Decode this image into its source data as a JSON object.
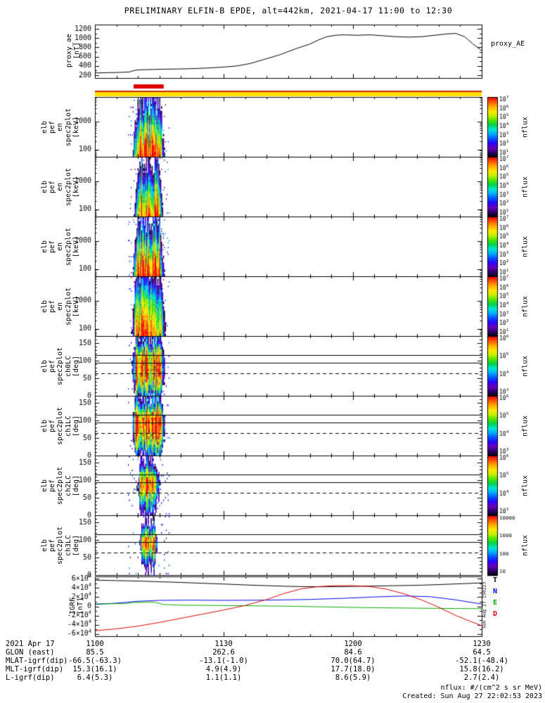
{
  "title": "PRELIMINARY ELFIN-B EPDE, alt=442km, 2021-04-17 11:00 to 12:30",
  "stamp_vertical": "Sun Aug 27 150223",
  "labels": {
    "nflux": "nflux"
  },
  "colors": {
    "background": "#ffffff",
    "frame": "#000000",
    "burst_marker": "#dd0000",
    "status_bar": "#ffdf00",
    "status_bar_edge": "#cc2200"
  },
  "colormap": [
    "#05000a",
    "#2b006a",
    "#6a00b8",
    "#2a00ff",
    "#0055ff",
    "#00aaff",
    "#00e6d2",
    "#00d24b",
    "#53e600",
    "#c8f000",
    "#ffe600",
    "#ffaa00",
    "#ff5500",
    "#f00000"
  ],
  "chart_data": {
    "type": "multi-panel time series and spectrograms",
    "time_axis": {
      "t_start": 0,
      "t_end": 90,
      "minor_step": 5,
      "major_ticks": [
        0,
        30,
        60,
        90
      ],
      "tick_labels": [
        "1100",
        "1130",
        "1200",
        "1230"
      ]
    },
    "proxy": {
      "left_label": "proxy_ae\n[nT]",
      "right_label": "proxy_AE",
      "ylim": [
        140,
        1290
      ],
      "yticks": [
        200,
        400,
        600,
        800,
        1000,
        1200
      ],
      "minor": 100,
      "major": 200,
      "series": {
        "t": [
          0,
          3,
          6,
          8,
          9,
          10,
          12,
          14,
          16,
          20,
          24,
          27,
          30,
          33,
          36,
          39,
          43,
          47,
          50,
          52,
          54,
          56,
          58,
          61,
          64,
          67,
          70,
          73,
          76,
          79,
          82,
          84,
          86,
          88,
          90
        ],
        "v": [
          250,
          255,
          262,
          270,
          300,
          315,
          320,
          326,
          330,
          336,
          346,
          360,
          376,
          400,
          450,
          530,
          640,
          780,
          870,
          960,
          1030,
          1060,
          1070,
          1060,
          1070,
          1050,
          1030,
          1020,
          1030,
          1060,
          1090,
          1100,
          1030,
          870,
          730
        ]
      }
    },
    "burst_bar": {
      "t0": 9,
      "t1": 16
    },
    "energy_panels": [
      {
        "left_label": "elb\npef\nen\nspec2plot\n[keV]",
        "ylog": true,
        "ylim": [
          55,
          7500
        ],
        "yticks": [
          100,
          1000
        ],
        "vmin": 1,
        "vmax": 7,
        "cbar": {
          "style": "exp",
          "labels": [
            7,
            6,
            5,
            4,
            3,
            2,
            1
          ]
        },
        "burst": {
          "t_center": 12.4,
          "t_flat": 2.6,
          "t_zero": 3.9
        },
        "profile": {
          "x": [
            60,
            100,
            170,
            300,
            500,
            900,
            1500,
            2600,
            4500,
            7000
          ],
          "v": [
            6.9,
            6.4,
            5.8,
            5.1,
            4.4,
            3.6,
            2.8,
            2.1,
            1.5,
            1.0
          ]
        }
      },
      {
        "left_label": "elb\npef\nen\nspec2plot\n[keV]",
        "ylog": true,
        "ylim": [
          55,
          7500
        ],
        "yticks": [
          100,
          1000
        ],
        "vmin": 1,
        "vmax": 7,
        "cbar": {
          "style": "exp",
          "labels": [
            7,
            6,
            5,
            4,
            3,
            2,
            1
          ]
        },
        "burst": {
          "t_center": 12.4,
          "t_flat": 2.3,
          "t_zero": 3.6
        },
        "profile": {
          "x": [
            60,
            100,
            170,
            300,
            500,
            900,
            1500,
            2600,
            4500,
            7000
          ],
          "v": [
            6.7,
            6.2,
            5.7,
            5.0,
            4.3,
            3.5,
            2.7,
            2.0,
            1.4,
            0.9
          ]
        }
      },
      {
        "left_label": "elb\npef\nen\nspec2plot\n[keV]",
        "ylog": true,
        "ylim": [
          55,
          7500
        ],
        "yticks": [
          100,
          1000
        ],
        "vmin": 1,
        "vmax": 7,
        "cbar": {
          "style": "exp",
          "labels": [
            7,
            6,
            5,
            4,
            3,
            2,
            1
          ]
        },
        "burst": {
          "t_center": 12.4,
          "t_flat": 2.6,
          "t_zero": 3.9
        },
        "profile": {
          "x": [
            60,
            100,
            170,
            300,
            500,
            900,
            1500,
            2600,
            4500,
            7000
          ],
          "v": [
            6.9,
            6.5,
            5.9,
            5.2,
            4.5,
            3.6,
            2.8,
            2.0,
            1.4,
            1.0
          ]
        }
      },
      {
        "left_label": "elb\npef\nen\nspec2plot\n[keV]",
        "ylog": true,
        "ylim": [
          55,
          7500
        ],
        "yticks": [
          100,
          1000
        ],
        "vmin": 1,
        "vmax": 7,
        "cbar": {
          "style": "exp",
          "labels": [
            7,
            6,
            5,
            4,
            3,
            2,
            1
          ]
        },
        "burst": {
          "t_center": 12.4,
          "t_flat": 2.8,
          "t_zero": 4.3
        },
        "profile": {
          "x": [
            60,
            100,
            170,
            300,
            500,
            900,
            1500,
            2600,
            4500,
            7000
          ],
          "v": [
            6.3,
            6.0,
            5.6,
            5.2,
            4.8,
            4.3,
            3.6,
            2.9,
            2.1,
            1.4
          ]
        }
      }
    ],
    "pitch_panels": [
      {
        "left_label": "elb\npef\nspec2plot\nch0LC\n[deg]",
        "ylog": false,
        "ylim": [
          0,
          170
        ],
        "yticks": [
          0,
          50,
          100,
          150
        ],
        "vmin": 3,
        "vmax": 6.3,
        "cbar": {
          "style": "exp",
          "labels": [
            6,
            5,
            4,
            3
          ]
        },
        "lines_solid": [
          116,
          95
        ],
        "lines_dashed": [
          64
        ],
        "burst": {
          "t_center": 12.4,
          "t_flat": 2.9,
          "t_zero": 4.2
        },
        "profile": {
          "x": [
            0,
            15,
            30,
            45,
            60,
            75,
            90,
            105,
            120,
            135,
            150
          ],
          "v": [
            3.6,
            4.4,
            5.0,
            5.4,
            5.7,
            5.8,
            5.8,
            5.6,
            5.2,
            4.4,
            3.4
          ]
        }
      },
      {
        "left_label": "elb\npef\nspec2plot\nch1LC\n[deg]",
        "ylog": false,
        "ylim": [
          0,
          170
        ],
        "yticks": [
          0,
          50,
          100,
          150
        ],
        "vmin": 3,
        "vmax": 6.3,
        "cbar": {
          "style": "exp",
          "labels": [
            6,
            5,
            4,
            3
          ]
        },
        "lines_solid": [
          116,
          95
        ],
        "lines_dashed": [
          64
        ],
        "burst": {
          "t_center": 12.4,
          "t_flat": 2.9,
          "t_zero": 4.2
        },
        "profile": {
          "x": [
            0,
            15,
            30,
            45,
            60,
            75,
            90,
            105,
            120,
            135,
            150
          ],
          "v": [
            3.3,
            4.0,
            4.7,
            5.2,
            5.6,
            5.9,
            6.0,
            5.8,
            5.3,
            4.5,
            3.4
          ]
        }
      },
      {
        "left_label": "elb\npef\nspec2plot\nch2LC\n[deg]",
        "ylog": false,
        "ylim": [
          0,
          170
        ],
        "yticks": [
          0,
          50,
          100,
          150
        ],
        "vmin": 3,
        "vmax": 6.0,
        "cbar": {
          "style": "exp",
          "labels": [
            6,
            5,
            4,
            3
          ]
        },
        "lines_solid": [
          116,
          95
        ],
        "lines_dashed": [
          64
        ],
        "burst": {
          "t_center": 12.4,
          "t_flat": 1.7,
          "t_zero": 3.1
        },
        "profile": {
          "x": [
            0,
            15,
            30,
            45,
            60,
            75,
            90,
            105,
            120,
            135,
            150
          ],
          "v": [
            3.1,
            3.5,
            4.0,
            4.5,
            5.0,
            5.4,
            5.5,
            5.2,
            4.6,
            3.8,
            3.2
          ]
        }
      },
      {
        "left_label": "elb\npef\nspec2plot\nch3LC\n[deg]",
        "ylog": false,
        "ylim": [
          0,
          170
        ],
        "yticks": [
          0,
          50,
          100,
          150
        ],
        "vmin": 1,
        "vmax": 4.0,
        "cbar": {
          "style": "plain",
          "labels": [
            "10000",
            "1000",
            "100",
            "10"
          ]
        },
        "lines_solid": [
          116,
          95
        ],
        "lines_dashed": [
          64
        ],
        "burst": {
          "t_center": 12.3,
          "t_flat": 1.3,
          "t_zero": 2.6
        },
        "profile": {
          "x": [
            0,
            15,
            30,
            45,
            60,
            75,
            90,
            105,
            120,
            135,
            150
          ],
          "v": [
            0.4,
            0.8,
            1.3,
            1.9,
            2.6,
            3.3,
            3.6,
            3.2,
            2.5,
            1.6,
            0.7
          ]
        }
      }
    ],
    "igrf": {
      "left_label": "IGRF\n[nT]",
      "ylim": [
        -65000,
        65000
      ],
      "yticks": [
        -60000,
        -40000,
        -20000,
        0,
        20000,
        40000,
        60000
      ],
      "minor": 10000,
      "major": 20000,
      "series": [
        {
          "name": "T",
          "color": "#000000",
          "t": [
            0,
            10,
            20,
            30,
            38,
            45,
            52,
            58,
            64,
            70,
            76,
            82,
            90
          ],
          "v": [
            57000,
            55000,
            52000,
            48500,
            45500,
            43500,
            42500,
            43000,
            44000,
            45000,
            46000,
            48000,
            51000
          ]
        },
        {
          "name": "N",
          "color": "#0000ee",
          "t": [
            0,
            5,
            10,
            15,
            22,
            30,
            40,
            50,
            58,
            65,
            72,
            78,
            84,
            90
          ],
          "v": [
            4000,
            7000,
            11000,
            13000,
            13500,
            13000,
            13500,
            15000,
            17500,
            20500,
            22500,
            21000,
            14000,
            5000
          ]
        },
        {
          "name": "E",
          "color": "#00aa00",
          "t": [
            0,
            7,
            9,
            12,
            14,
            16,
            20,
            28,
            36,
            45,
            55,
            65,
            75,
            85,
            90
          ],
          "v": [
            5500,
            5800,
            8500,
            9000,
            8800,
            4000,
            2500,
            2000,
            1200,
            300,
            -1500,
            -3000,
            -4000,
            -4800,
            -5000
          ]
        },
        {
          "name": "D",
          "color": "#dd0000",
          "t": [
            0,
            5,
            10,
            15,
            20,
            25,
            30,
            35,
            40,
            44,
            48,
            52,
            56,
            60,
            64,
            68,
            72,
            76,
            80,
            84,
            88,
            90
          ],
          "v": [
            -53000,
            -49000,
            -43000,
            -35000,
            -26000,
            -17000,
            -8000,
            2000,
            15000,
            28000,
            38000,
            43000,
            45000,
            45000,
            43000,
            37000,
            27000,
            14000,
            -2000,
            -20000,
            -35000,
            -42000
          ]
        }
      ]
    }
  },
  "table": {
    "rows": [
      {
        "label": "2021 Apr 17",
        "values": [
          "1100",
          "1130",
          "1200",
          "1230"
        ]
      },
      {
        "label": "GLON (east)",
        "values": [
          "85.5",
          "262.6",
          "84.6",
          "64.5"
        ]
      },
      {
        "label": "MLAT-igrf(dip)",
        "values": [
          "-66.5(-63.3)",
          "-13.1(-1.0)",
          "70.0(64.7)",
          "-52.1(-48.4)"
        ]
      },
      {
        "label": "MLT-igrf(dip)",
        "values": [
          "15.3(16.1)",
          "4.9(4.9)",
          "17.7(18.0)",
          "15.8(16.2)"
        ]
      },
      {
        "label": "L-igrf(dip)",
        "values": [
          "6.4(5.3)",
          "1.1(1.1)",
          "8.6(5.9)",
          "2.7(2.4)"
        ]
      }
    ]
  },
  "footer": {
    "nflux_units": "nflux: #/(cm^2 s sr MeV)",
    "created": "Created: Sun Aug 27 22:02:53 2023"
  }
}
